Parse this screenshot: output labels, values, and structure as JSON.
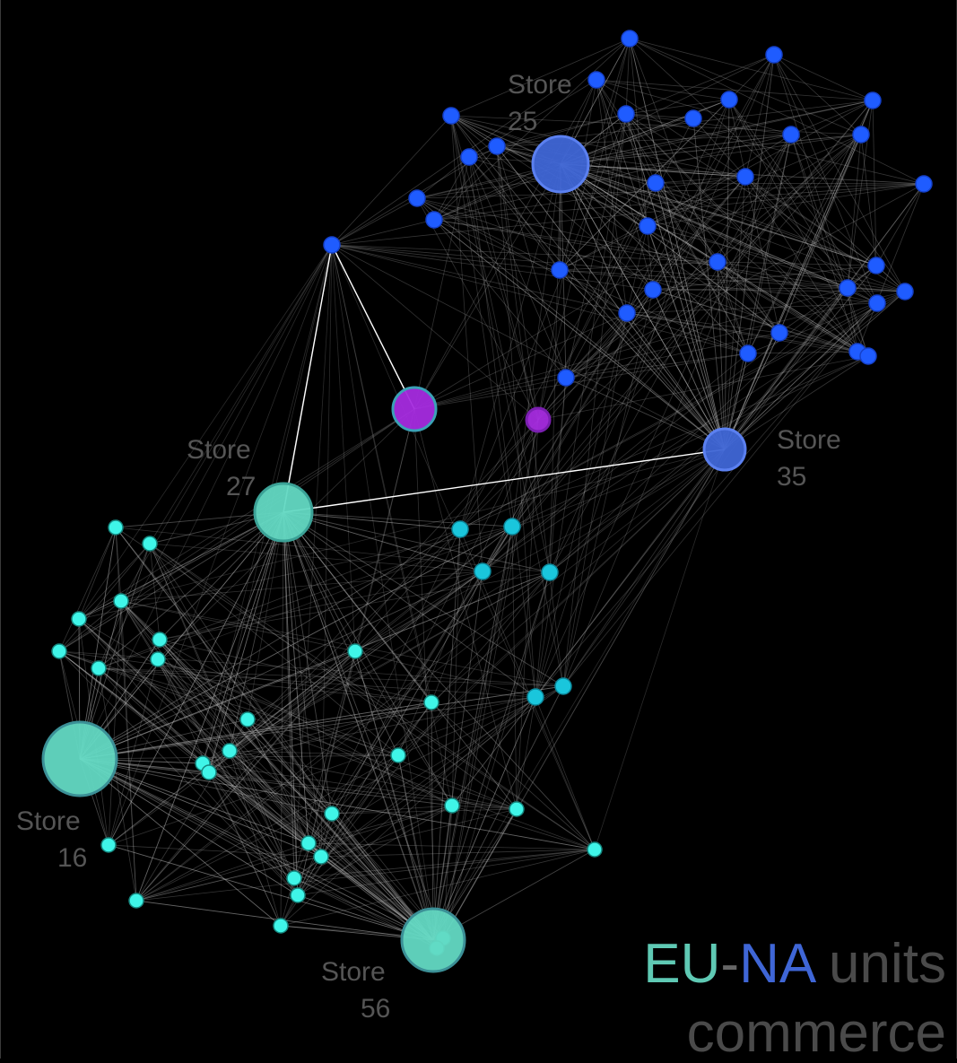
{
  "title": {
    "part1": "EU",
    "sep": "-",
    "part2": "NA",
    "part3": " units",
    "line2": "commerce",
    "colors": {
      "eu": "#5fc9b4",
      "sep": "#666666",
      "na": "#3f66d6",
      "rest": "#4a4a4a"
    }
  },
  "colors": {
    "background": "#000000",
    "blue_group": "#1f5cff",
    "teal_group": "#3ff5e8",
    "purple": "#a52bdf",
    "cyan_mid": "#1ac6dc",
    "edge": "#bfbfbf",
    "highlight_edge": "#ffffff",
    "label": "#555555"
  },
  "labels": {
    "store25": [
      "Store",
      "25"
    ],
    "store27": [
      "Store",
      "27"
    ],
    "store35": [
      "Store",
      "35"
    ],
    "store16": [
      "Store",
      "16"
    ],
    "store56": [
      "Store",
      "56"
    ]
  }
}
